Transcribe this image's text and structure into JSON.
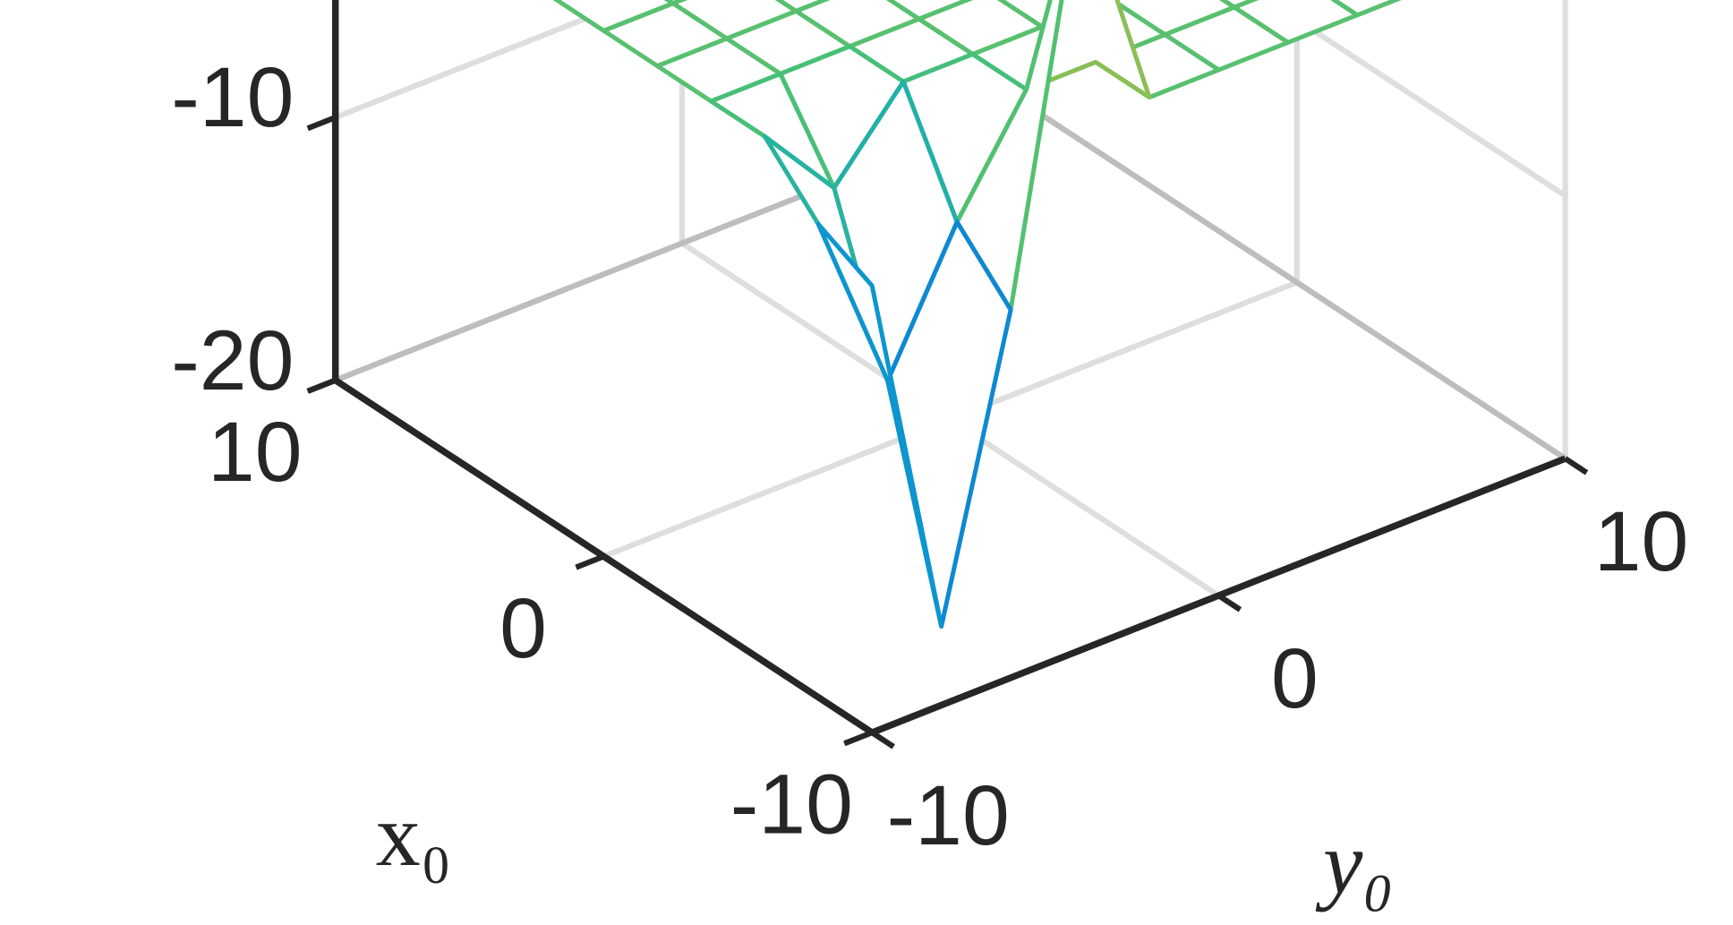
{
  "chart_data": {
    "type": "mesh3d",
    "x_label": "x₀",
    "y_label": "y₀",
    "x": [
      -10,
      -8,
      -6,
      -4,
      -2,
      0,
      2,
      4,
      6,
      8,
      10
    ],
    "y": [
      -10,
      -8,
      -6,
      -4,
      -2,
      0,
      2,
      4,
      6,
      8,
      10
    ],
    "z": [
      [
        -3,
        -17,
        -6,
        9,
        0,
        0,
        0,
        0,
        0,
        0,
        0
      ],
      [
        -2,
        -9,
        -4,
        0,
        0,
        0,
        0,
        0,
        0,
        0,
        0
      ],
      [
        0,
        -3,
        0,
        0,
        0,
        0,
        0,
        0,
        0,
        0,
        0
      ],
      [
        0,
        0,
        0,
        0,
        0,
        0,
        0,
        0,
        0,
        0,
        0
      ],
      [
        0,
        0,
        0,
        0,
        0,
        0,
        0,
        0,
        0,
        0,
        0
      ],
      [
        0,
        0,
        0,
        0,
        0,
        0,
        0,
        0,
        0,
        0,
        0
      ],
      [
        0,
        0,
        0,
        0,
        0,
        0,
        0,
        0,
        0,
        0,
        0
      ],
      [
        0,
        0,
        0,
        0,
        0,
        0,
        0,
        0,
        0,
        0,
        0
      ],
      [
        0,
        0,
        0,
        0,
        0,
        0,
        0,
        0,
        0,
        0,
        0
      ],
      [
        0,
        0,
        0,
        0,
        0,
        0,
        0,
        0,
        0,
        0,
        0
      ],
      [
        0,
        0,
        0,
        0,
        0,
        0,
        0,
        0,
        0,
        0,
        0
      ]
    ],
    "xlim": [
      -10,
      10
    ],
    "xticks": [
      -10,
      0,
      10
    ],
    "ylim": [
      -10,
      10
    ],
    "yticks": [
      -10,
      0,
      10
    ],
    "zlim": [
      -20,
      10
    ],
    "zticks": [
      -20,
      -10
    ],
    "clim": [
      -17,
      10
    ],
    "colormap": "parula",
    "grid": true
  }
}
